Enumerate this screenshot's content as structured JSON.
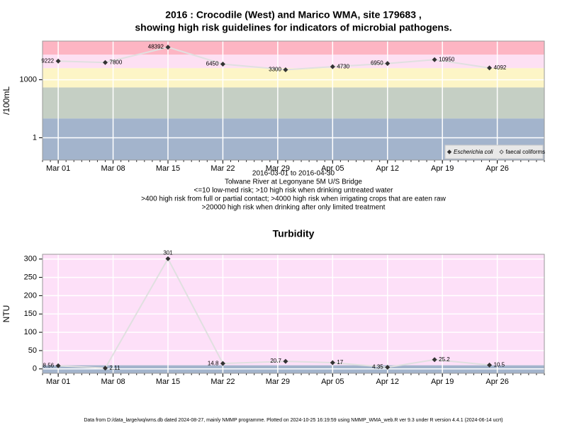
{
  "chart_data": [
    {
      "type": "line",
      "log_scale": true,
      "title": "2016 : Crocodile (West) and Marico WMA, site 179683 ,",
      "subtitle": "showing high risk guidelines for indicators of microbial pathogens.",
      "ylabel": "/100mL",
      "notes": [
        "2016-03-01 to 2016-04-30",
        "Tolwane River at Legonyane 5M U/S Bridge",
        "<=10 low-med risk; >10 high risk when drinking untreated water",
        ">400 high risk from full or partial contact; >4000 high risk when irrigating crops that are eaten raw",
        ">20000 high risk when drinking after only limited treatment"
      ],
      "x": [
        "2016-03-01",
        "2016-03-07",
        "2016-03-15",
        "2016-03-22",
        "2016-03-30",
        "2016-04-05",
        "2016-04-12",
        "2016-04-18",
        "2016-04-25"
      ],
      "series": [
        {
          "name": "Escherichia coli",
          "color": "#333333",
          "values": [
            9222,
            7800,
            48392,
            6450,
            3300,
            4730,
            6950,
            10950,
            4092
          ]
        },
        {
          "name": "faecal coliforms",
          "color": "#666666",
          "values": [
            null,
            null,
            null,
            null,
            null,
            null,
            null,
            null,
            null
          ]
        }
      ],
      "xlim": [
        "2016-02-28",
        "2016-05-02"
      ],
      "xticks": [
        {
          "value": "2016-03-01",
          "label": "Mar 01"
        },
        {
          "value": "2016-03-08",
          "label": "Mar 08"
        },
        {
          "value": "2016-03-15",
          "label": "Mar 15"
        },
        {
          "value": "2016-03-22",
          "label": "Mar 22"
        },
        {
          "value": "2016-03-29",
          "label": "Mar 29"
        },
        {
          "value": "2016-04-05",
          "label": "Apr 05"
        },
        {
          "value": "2016-04-12",
          "label": "Apr 12"
        },
        {
          "value": "2016-04-19",
          "label": "Apr 19"
        },
        {
          "value": "2016-04-26",
          "label": "Apr 26"
        }
      ],
      "ylim": [
        0.07,
        100000
      ],
      "yticks": [
        1,
        1000
      ],
      "grid": true,
      "legend": "bottom-right",
      "bands": [
        {
          "from": 0.07,
          "to": 10,
          "color": "#a3b4cc"
        },
        {
          "from": 10,
          "to": 400,
          "color": "#c5cfc4"
        },
        {
          "from": 400,
          "to": 4000,
          "color": "#fdf5c6"
        },
        {
          "from": 4000,
          "to": 20000,
          "color": "#fde0f3"
        },
        {
          "from": 20000,
          "to": 100000,
          "color": "#fdb5c3"
        }
      ]
    },
    {
      "type": "line",
      "log_scale": false,
      "title": "Turbidity",
      "ylabel": "NTU",
      "x": [
        "2016-03-01",
        "2016-03-07",
        "2016-03-15",
        "2016-03-22",
        "2016-03-30",
        "2016-04-05",
        "2016-04-12",
        "2016-04-18",
        "2016-04-25"
      ],
      "series": [
        {
          "name": "Turbidity",
          "color": "#333333",
          "values": [
            8.56,
            2.11,
            301,
            14.8,
            20.7,
            17,
            4.35,
            25.2,
            10.5
          ]
        }
      ],
      "xlim": [
        "2016-02-28",
        "2016-05-02"
      ],
      "xticks": [
        {
          "value": "2016-03-01",
          "label": "Mar 01"
        },
        {
          "value": "2016-03-08",
          "label": "Mar 08"
        },
        {
          "value": "2016-03-15",
          "label": "Mar 15"
        },
        {
          "value": "2016-03-22",
          "label": "Mar 22"
        },
        {
          "value": "2016-03-29",
          "label": "Mar 29"
        },
        {
          "value": "2016-04-05",
          "label": "Apr 05"
        },
        {
          "value": "2016-04-12",
          "label": "Apr 12"
        },
        {
          "value": "2016-04-19",
          "label": "Apr 19"
        },
        {
          "value": "2016-04-26",
          "label": "Apr 26"
        }
      ],
      "ylim": [
        -12,
        313
      ],
      "yticks": [
        0,
        50,
        100,
        150,
        200,
        250,
        300
      ],
      "grid": true,
      "bands": [
        {
          "from": -12,
          "to": 10,
          "color": "#a3b4cc"
        },
        {
          "from": 10,
          "to": 313,
          "color": "#fde0f8"
        }
      ]
    }
  ],
  "footer": "Data from D:/data_large/wq/wms.db dated 2024-08-27, mainly NMMP programme. Plotted on 2024-10-25 16:19:59 using NMMP_WMA_web.R ver 9.3 under R version 4.4.1 (2024-06-14 ucrt)"
}
